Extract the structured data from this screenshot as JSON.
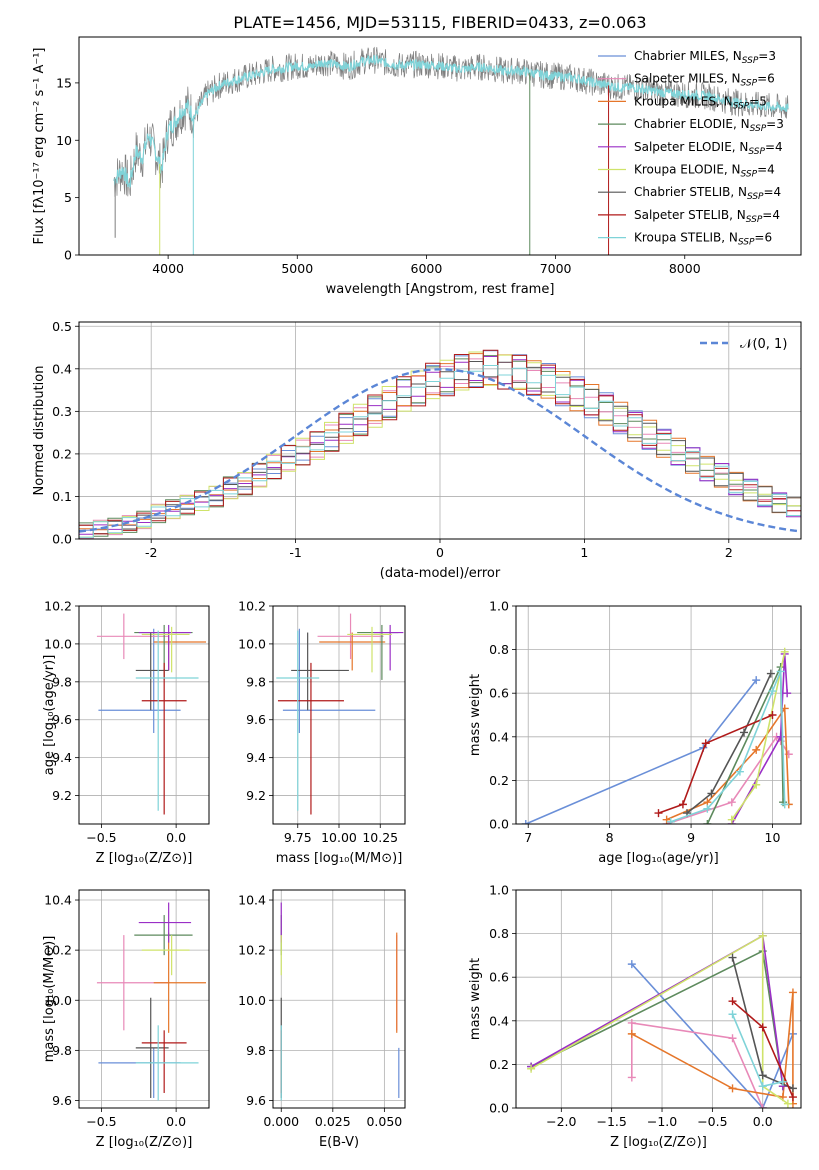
{
  "figure_title": "PLATE=1456, MJD=53115, FIBERID=0433, z=0.063",
  "models": [
    {
      "label": "Chabrier MILES, N",
      "sub": "SSP",
      "tail": "=3",
      "color": "#6a8fd8"
    },
    {
      "label": "Salpeter MILES, N",
      "sub": "SSP",
      "tail": "=6",
      "color": "#e889b8"
    },
    {
      "label": "Kroupa MILES, N",
      "sub": "SSP",
      "tail": "=5",
      "color": "#e5762a"
    },
    {
      "label": "Chabrier ELODIE, N",
      "sub": "SSP",
      "tail": "=3",
      "color": "#5d8a5d"
    },
    {
      "label": "Salpeter ELODIE, N",
      "sub": "SSP",
      "tail": "=4",
      "color": "#9a2fc6"
    },
    {
      "label": "Kroupa ELODIE, N",
      "sub": "SSP",
      "tail": "=4",
      "color": "#cfe36a"
    },
    {
      "label": "Chabrier STELIB, N",
      "sub": "SSP",
      "tail": "=4",
      "color": "#555555"
    },
    {
      "label": "Salpeter STELIB, N",
      "sub": "SSP",
      "tail": "=4",
      "color": "#b01a1a"
    },
    {
      "label": "Kroupa STELIB, N",
      "sub": "SSP",
      "tail": "=6",
      "color": "#7fd3d8"
    }
  ],
  "chart_data": [
    {
      "id": "spectrum",
      "type": "line",
      "title": "PLATE=1456, MJD=53115, FIBERID=0433, z=0.063",
      "xlabel": "wavelength [Angstrom, rest frame]",
      "ylabel": "Flux [fλ10⁻¹⁷ erg cm⁻² s⁻¹ A⁻¹]",
      "xlim": [
        3310,
        8900
      ],
      "ylim": [
        0,
        19
      ],
      "xticks": [
        4000,
        5000,
        6000,
        7000,
        8000
      ],
      "yticks": [
        0,
        5,
        10,
        15
      ],
      "data_color": "#7f7f7f",
      "model_color": "#7fd3d8",
      "x": [
        3580,
        3650,
        3700,
        3750,
        3800,
        3850,
        3900,
        3950,
        4000,
        4050,
        4100,
        4150,
        4200,
        4300,
        4400,
        4500,
        4600,
        4700,
        4800,
        4900,
        5000,
        5100,
        5200,
        5300,
        5400,
        5500,
        5600,
        5700,
        5800,
        5900,
        6000,
        6100,
        6200,
        6300,
        6400,
        6500,
        6600,
        6700,
        6800,
        6900,
        7000,
        7100,
        7200,
        7300,
        7400,
        7500,
        7600,
        7700,
        7800,
        7900,
        8000,
        8100,
        8200,
        8300,
        8400,
        8500,
        8600,
        8700,
        8800
      ],
      "y": [
        6.5,
        7.5,
        6.0,
        9.0,
        8.5,
        10.5,
        9.0,
        7.5,
        11.0,
        11.5,
        12.5,
        13.0,
        12.0,
        14.0,
        14.8,
        15.2,
        15.5,
        15.8,
        16.2,
        16.3,
        16.5,
        16.4,
        16.8,
        16.6,
        16.4,
        16.9,
        17.0,
        16.7,
        16.5,
        16.6,
        16.6,
        16.5,
        16.3,
        16.2,
        16.4,
        16.3,
        16.0,
        16.1,
        15.9,
        15.7,
        15.6,
        15.5,
        15.3,
        15.0,
        14.8,
        14.6,
        14.6,
        14.4,
        14.2,
        14.1,
        14.0,
        13.9,
        13.8,
        13.5,
        13.3,
        13.1,
        13.0,
        12.9,
        12.8
      ]
    },
    {
      "id": "residuals",
      "type": "line",
      "xlabel": "(data-model)/error",
      "ylabel": "Normed distribution",
      "legend": "𝒩(0, 1)",
      "xlim": [
        -2.5,
        2.5
      ],
      "ylim": [
        0,
        0.51
      ],
      "xticks": [
        -2,
        -1,
        0,
        1,
        2
      ],
      "yticks": [
        0.0,
        0.1,
        0.2,
        0.3,
        0.4,
        0.5
      ],
      "gauss_color": "#5b86d6",
      "bin_edges_start": -2.5,
      "bin_width": 0.1,
      "hist_values": [
        0.02,
        0.025,
        0.03,
        0.035,
        0.045,
        0.06,
        0.07,
        0.08,
        0.09,
        0.1,
        0.12,
        0.13,
        0.15,
        0.17,
        0.19,
        0.205,
        0.22,
        0.24,
        0.26,
        0.28,
        0.3,
        0.32,
        0.34,
        0.355,
        0.37,
        0.38,
        0.39,
        0.4,
        0.4,
        0.395,
        0.39,
        0.38,
        0.37,
        0.355,
        0.34,
        0.325,
        0.305,
        0.285,
        0.265,
        0.245,
        0.225,
        0.205,
        0.185,
        0.165,
        0.15,
        0.13,
        0.115,
        0.1,
        0.085,
        0.075,
        0.065,
        0.055,
        0.05,
        0.045,
        0.04
      ]
    },
    {
      "id": "age-vs-Z",
      "type": "scatter",
      "xlabel": "Z [log₁₀(Z/Z⊙)]",
      "ylabel": "age  [log₁₀(age/yr)]",
      "xlim": [
        -0.65,
        0.22
      ],
      "ylim": [
        9.05,
        10.2
      ],
      "xticks": [
        -0.5,
        0.0
      ],
      "xticklabels": [
        "−0.5",
        "0.0"
      ],
      "yticks": [
        9.2,
        9.4,
        9.6,
        9.8,
        10.0,
        10.2
      ],
      "points": [
        {
          "x": -0.15,
          "y": 9.65,
          "xerr": [
            0.37,
            0.18
          ],
          "yerr": [
            0.12,
            0.43
          ]
        },
        {
          "x": -0.35,
          "y": 10.04,
          "xerr": [
            0.18,
            0.3
          ],
          "yerr": [
            0.12,
            0.12
          ]
        },
        {
          "x": -0.05,
          "y": 10.01,
          "xerr": [
            0.1,
            0.25
          ],
          "yerr": [
            0.15,
            0.05
          ]
        },
        {
          "x": -0.08,
          "y": 10.06,
          "xerr": [
            0.2,
            0.19
          ],
          "yerr": [
            0.25,
            0.04
          ]
        },
        {
          "x": -0.05,
          "y": 10.06,
          "xerr": [
            0.2,
            0.15
          ],
          "yerr": [
            0.2,
            0.04
          ]
        },
        {
          "x": -0.03,
          "y": 10.05,
          "xerr": [
            0.2,
            0.12
          ],
          "yerr": [
            0.2,
            0.04
          ]
        },
        {
          "x": -0.17,
          "y": 9.86,
          "xerr": [
            0.1,
            0.12
          ],
          "yerr": [
            0.21,
            0.2
          ]
        },
        {
          "x": -0.08,
          "y": 9.7,
          "xerr": [
            0.15,
            0.15
          ],
          "yerr": [
            0.6,
            0.2
          ]
        },
        {
          "x": -0.12,
          "y": 9.82,
          "xerr": [
            0.15,
            0.27
          ],
          "yerr": [
            0.7,
            0.25
          ]
        }
      ]
    },
    {
      "id": "age-vs-mass",
      "type": "scatter",
      "xlabel": "mass [log₁₀(M/M⊙)]",
      "xlim": [
        9.6,
        10.4
      ],
      "ylim": [
        9.05,
        10.2
      ],
      "xticks": [
        9.75,
        10.0,
        10.25
      ],
      "xticklabels": [
        "9.75",
        "10.00",
        "10.25"
      ],
      "yticks": [
        9.2,
        9.4,
        9.6,
        9.8,
        10.0,
        10.2
      ],
      "points": [
        {
          "x": 9.76,
          "y": 9.65,
          "xerr": [
            0.1,
            0.46
          ],
          "yerr": [
            0.12,
            0.43
          ]
        },
        {
          "x": 10.07,
          "y": 10.04,
          "xerr": [
            0.2,
            0.2
          ],
          "yerr": [
            0.12,
            0.12
          ]
        },
        {
          "x": 10.08,
          "y": 10.01,
          "xerr": [
            0.2,
            0.2
          ],
          "yerr": [
            0.15,
            0.05
          ]
        },
        {
          "x": 10.26,
          "y": 10.06,
          "xerr": [
            0.15,
            0.1
          ],
          "yerr": [
            0.25,
            0.04
          ]
        },
        {
          "x": 10.31,
          "y": 10.06,
          "xerr": [
            0.1,
            0.08
          ],
          "yerr": [
            0.2,
            0.04
          ]
        },
        {
          "x": 10.2,
          "y": 10.05,
          "xerr": [
            0.15,
            0.12
          ],
          "yerr": [
            0.2,
            0.04
          ]
        },
        {
          "x": 9.81,
          "y": 9.86,
          "xerr": [
            0.1,
            0.25
          ],
          "yerr": [
            0.21,
            0.2
          ]
        },
        {
          "x": 9.83,
          "y": 9.7,
          "xerr": [
            0.2,
            0.2
          ],
          "yerr": [
            0.6,
            0.2
          ]
        },
        {
          "x": 9.75,
          "y": 9.82,
          "xerr": [
            0.13,
            0.13
          ],
          "yerr": [
            0.7,
            0.25
          ]
        }
      ]
    },
    {
      "id": "weight-vs-age",
      "type": "line",
      "xlabel": "age  [log₁₀(age/yr)]",
      "ylabel": "mass weight",
      "xlim": [
        6.85,
        10.35
      ],
      "ylim": [
        0,
        1.0
      ],
      "xticks": [
        7,
        8,
        9,
        10
      ],
      "yticks": [
        0.0,
        0.2,
        0.4,
        0.6,
        0.8,
        1.0
      ],
      "series": [
        {
          "x": [
            6.97,
            9.15,
            9.8
          ],
          "y": [
            0.0,
            0.35,
            0.66
          ]
        },
        {
          "x": [
            8.7,
            9.5,
            10.05,
            10.1,
            10.2
          ],
          "y": [
            0.0,
            0.1,
            0.4,
            0.38,
            0.32
          ]
        },
        {
          "x": [
            8.7,
            9.2,
            9.8,
            10.15,
            10.2
          ],
          "y": [
            0.02,
            0.1,
            0.34,
            0.53,
            0.09
          ]
        },
        {
          "x": [
            9.2,
            10.1,
            10.13
          ],
          "y": [
            0.0,
            0.72,
            0.1
          ]
        },
        {
          "x": [
            9.5,
            10.1,
            10.15,
            10.18
          ],
          "y": [
            0.0,
            0.4,
            0.78,
            0.6
          ]
        },
        {
          "x": [
            9.5,
            9.8,
            10.15
          ],
          "y": [
            0.02,
            0.18,
            0.79
          ]
        },
        {
          "x": [
            8.95,
            9.25,
            9.65,
            9.98
          ],
          "y": [
            0.05,
            0.14,
            0.42,
            0.69
          ]
        },
        {
          "x": [
            8.6,
            8.9,
            9.18,
            10.0
          ],
          "y": [
            0.05,
            0.09,
            0.37,
            0.5
          ]
        },
        {
          "x": [
            8.75,
            9.2,
            9.6,
            10.0,
            10.1,
            10.15
          ],
          "y": [
            0.01,
            0.07,
            0.24,
            0.61,
            0.7,
            0.09
          ]
        }
      ]
    },
    {
      "id": "mass-vs-Z",
      "type": "scatter",
      "xlabel": "Z [log₁₀(Z/Z⊙)]",
      "ylabel": "mass [log₁₀(M/M⊙)]",
      "xlim": [
        -0.65,
        0.22
      ],
      "ylim": [
        9.57,
        10.44
      ],
      "xticks": [
        -0.5,
        0.0
      ],
      "xticklabels": [
        "−0.5",
        "0.0"
      ],
      "yticks": [
        9.6,
        9.8,
        10.0,
        10.2,
        10.4
      ],
      "points": [
        {
          "x": -0.15,
          "y": 9.75,
          "xerr": [
            0.37,
            0.18
          ],
          "yerr": [
            0.14,
            0.06
          ]
        },
        {
          "x": -0.35,
          "y": 10.07,
          "xerr": [
            0.18,
            0.3
          ],
          "yerr": [
            0.19,
            0.19
          ]
        },
        {
          "x": -0.05,
          "y": 10.07,
          "xerr": [
            0.1,
            0.25
          ],
          "yerr": [
            0.2,
            0.2
          ]
        },
        {
          "x": -0.08,
          "y": 10.26,
          "xerr": [
            0.2,
            0.19
          ],
          "yerr": [
            0.08,
            0.08
          ]
        },
        {
          "x": -0.05,
          "y": 10.31,
          "xerr": [
            0.2,
            0.15
          ],
          "yerr": [
            0.08,
            0.08
          ]
        },
        {
          "x": -0.03,
          "y": 10.2,
          "xerr": [
            0.2,
            0.12
          ],
          "yerr": [
            0.1,
            0.06
          ]
        },
        {
          "x": -0.17,
          "y": 9.81,
          "xerr": [
            0.1,
            0.12
          ],
          "yerr": [
            0.2,
            0.2
          ]
        },
        {
          "x": -0.08,
          "y": 9.83,
          "xerr": [
            0.15,
            0.15
          ],
          "yerr": [
            0.2,
            0.05
          ]
        },
        {
          "x": -0.12,
          "y": 9.75,
          "xerr": [
            0.15,
            0.27
          ],
          "yerr": [
            0.15,
            0.15
          ]
        }
      ]
    },
    {
      "id": "mass-vs-ebv",
      "type": "scatter",
      "xlabel": "E(B-V)",
      "xlim": [
        -0.004,
        0.06
      ],
      "ylim": [
        9.57,
        10.44
      ],
      "xticks": [
        0.0,
        0.025,
        0.05
      ],
      "xticklabels": [
        "0.000",
        "0.025",
        "0.050"
      ],
      "yticks": [
        9.6,
        9.8,
        10.0,
        10.2,
        10.4
      ],
      "points": [
        {
          "x": 0.057,
          "y": 9.75,
          "xerr": [
            0,
            0
          ],
          "yerr": [
            0.14,
            0.06
          ]
        },
        {
          "x": 0.056,
          "y": 10.07,
          "xerr": [
            0,
            0
          ],
          "yerr": [
            0.19,
            0.19
          ]
        },
        {
          "x": 0.056,
          "y": 10.07,
          "xerr": [
            0,
            0
          ],
          "yerr": [
            0.2,
            0.2
          ]
        },
        {
          "x": 0.0,
          "y": 10.26,
          "xerr": [
            0,
            0
          ],
          "yerr": [
            0.08,
            0.08
          ]
        },
        {
          "x": 0.0,
          "y": 10.31,
          "xerr": [
            0,
            0
          ],
          "yerr": [
            0.08,
            0.08
          ]
        },
        {
          "x": 0.0,
          "y": 10.2,
          "xerr": [
            0,
            0
          ],
          "yerr": [
            0.1,
            0.06
          ]
        },
        {
          "x": 0.0,
          "y": 9.81,
          "xerr": [
            0,
            0
          ],
          "yerr": [
            0.2,
            0.2
          ]
        },
        {
          "x": 0.0,
          "y": 9.83,
          "xerr": [
            0,
            0
          ],
          "yerr": [
            0.2,
            0.05
          ]
        },
        {
          "x": 0.0,
          "y": 9.75,
          "xerr": [
            0,
            0
          ],
          "yerr": [
            0.15,
            0.15
          ]
        }
      ]
    },
    {
      "id": "weight-vs-Z",
      "type": "line",
      "xlabel": "Z [log₁₀(Z/Z⊙)]",
      "ylabel": "mass weight",
      "xlim": [
        -2.45,
        0.38
      ],
      "ylim": [
        0,
        1.0
      ],
      "xticks": [
        -2.0,
        -1.5,
        -1.0,
        -0.5,
        0.0
      ],
      "xticklabels": [
        "−2.0",
        "−1.5",
        "−1.0",
        "−0.5",
        "0.0"
      ],
      "yticks": [
        0.0,
        0.2,
        0.4,
        0.6,
        0.8,
        1.0
      ],
      "series": [
        {
          "x": [
            -1.3,
            0.0,
            0.3
          ],
          "y": [
            0.66,
            0.0,
            0.34
          ]
        },
        {
          "x": [
            -1.3,
            -1.3,
            -0.3,
            0.0
          ],
          "y": [
            0.14,
            0.39,
            0.32,
            0.0
          ]
        },
        {
          "x": [
            -1.3,
            -0.3,
            0.2,
            0.3,
            0.3
          ],
          "y": [
            0.34,
            0.09,
            0.05,
            0.53,
            0.02
          ]
        },
        {
          "x": [
            -2.3,
            0.0,
            0.2
          ],
          "y": [
            0.19,
            0.72,
            0.1
          ]
        },
        {
          "x": [
            -2.3,
            0.0,
            0.2
          ],
          "y": [
            0.19,
            0.79,
            0.1
          ]
        },
        {
          "x": [
            -2.3,
            0.0,
            0.0,
            0.25
          ],
          "y": [
            0.18,
            0.79,
            0.1,
            0.02
          ]
        },
        {
          "x": [
            -0.3,
            0.0,
            0.3
          ],
          "y": [
            0.69,
            0.15,
            0.09
          ]
        },
        {
          "x": [
            -0.3,
            0.0,
            0.3
          ],
          "y": [
            0.49,
            0.37,
            0.05
          ]
        },
        {
          "x": [
            -0.3,
            0.0,
            0.2
          ],
          "y": [
            0.43,
            0.1,
            0.12
          ]
        }
      ]
    }
  ]
}
